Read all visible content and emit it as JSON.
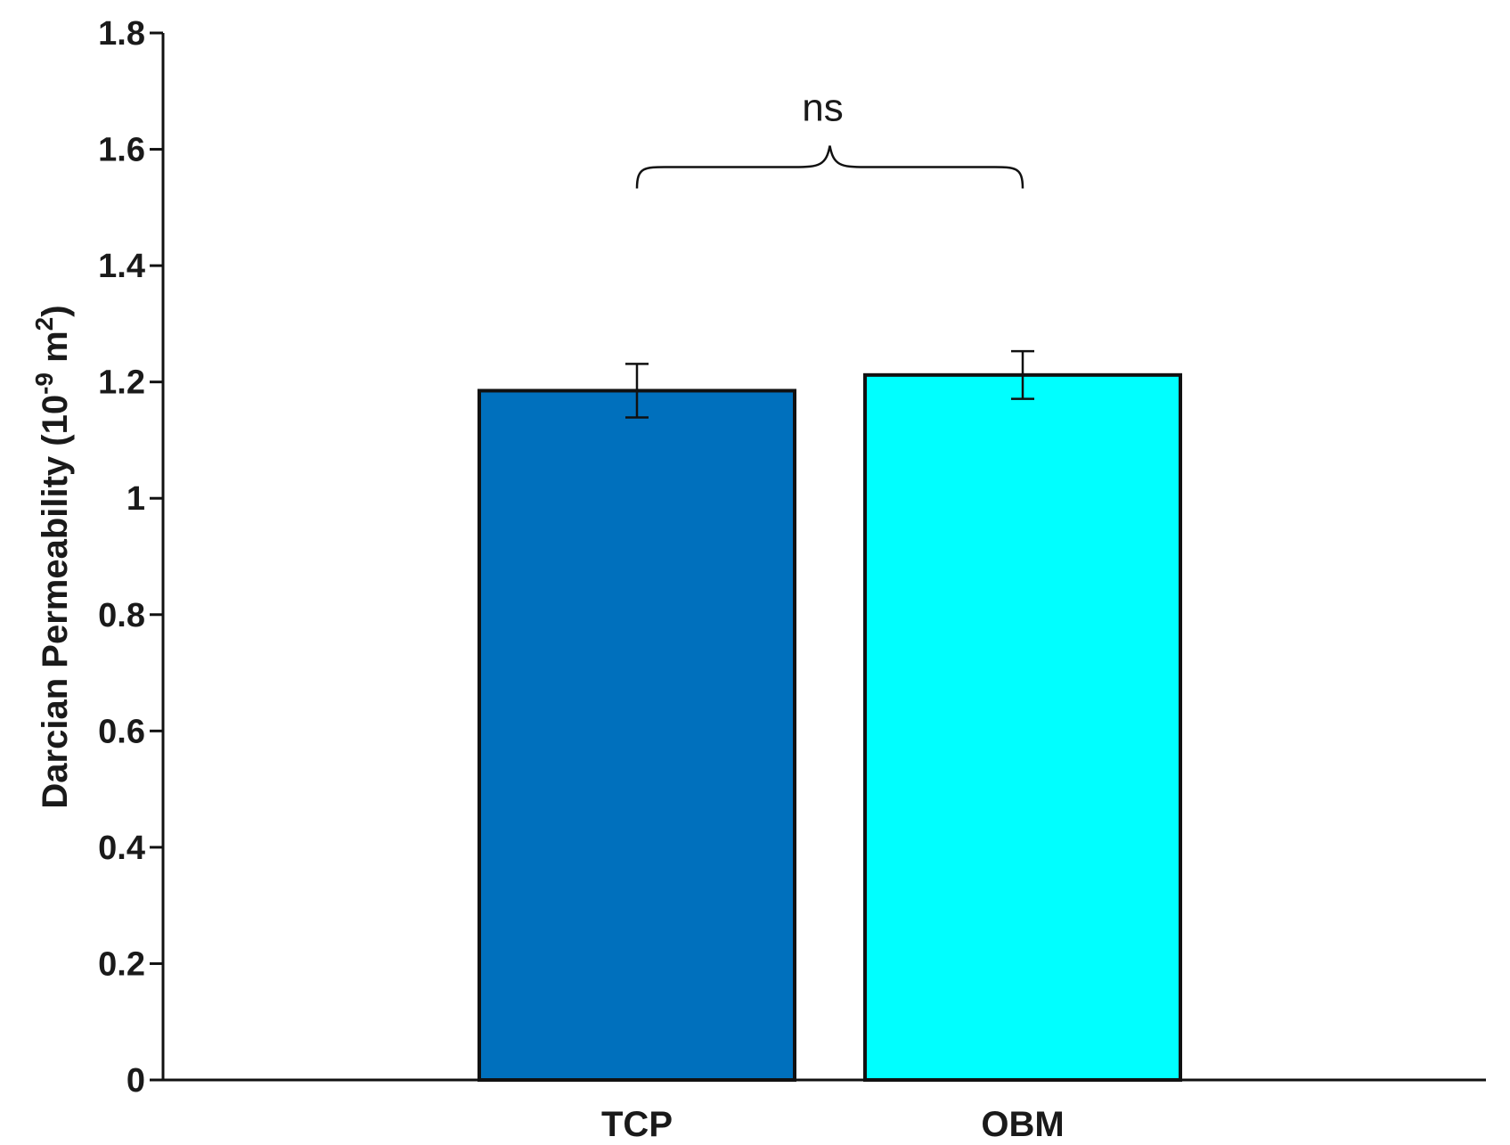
{
  "chart_data": {
    "type": "bar",
    "categories": [
      "TCP",
      "OBM"
    ],
    "values": [
      1.185,
      1.212
    ],
    "errors": [
      0.046,
      0.041
    ],
    "colors": [
      "#0070BD",
      "#00FFFF"
    ],
    "ylabel_main": "Darcian Permeability (10",
    "ylabel_exp": "-9",
    "ylabel_unit": " m",
    "ylabel_unit_exp": "2",
    "ylabel_close": ")",
    "ylim": [
      0,
      1.8
    ],
    "yticks": [
      0,
      0.2,
      0.4,
      0.6,
      0.8,
      1,
      1.2,
      1.4,
      1.6,
      1.8
    ],
    "ytick_labels": [
      "0",
      "0.2",
      "0.4",
      "0.6",
      "0.8",
      "1",
      "1.2",
      "1.4",
      "1.6",
      "1.8"
    ],
    "annotation": {
      "text": "ns",
      "between": [
        "TCP",
        "OBM"
      ],
      "y": 1.6
    }
  }
}
